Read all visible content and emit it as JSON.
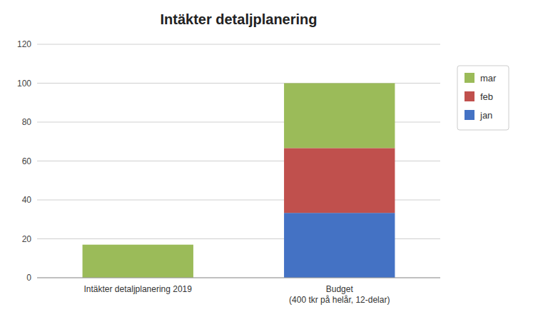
{
  "chart_data": {
    "type": "bar",
    "stacked": true,
    "title": "Intäkter detaljplanering",
    "categories": [
      "Intäkter detaljplanering 2019",
      "Budget\n(400 tkr på helår, 12-delar)"
    ],
    "series": [
      {
        "name": "jan",
        "color": "#4472C4",
        "values": [
          0,
          33.33
        ]
      },
      {
        "name": "feb",
        "color": "#C0504D",
        "values": [
          0,
          33.33
        ]
      },
      {
        "name": "mar",
        "color": "#9BBB59",
        "values": [
          17,
          33.34
        ]
      }
    ],
    "ylim": [
      0,
      120
    ],
    "yticks": [
      0,
      20,
      40,
      60,
      80,
      100,
      120
    ],
    "grid": true,
    "legend": "right"
  }
}
